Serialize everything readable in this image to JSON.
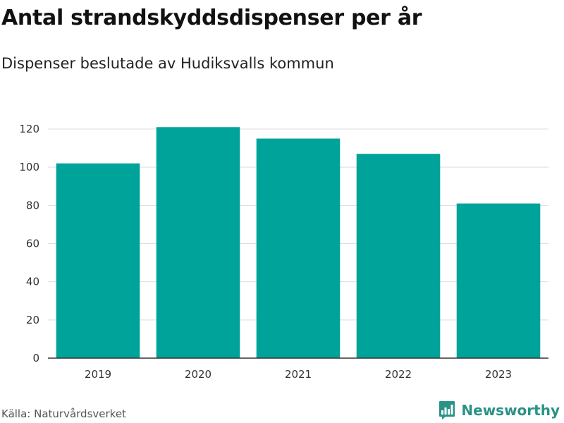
{
  "header": {
    "title": "Antal strandskyddsdispenser per år",
    "subtitle": "Dispenser beslutade av Hudiksvalls kommun"
  },
  "footer": {
    "source": "Källa: Naturvårdsverket",
    "brand": "Newsworthy",
    "brand_icon": "bar-chart-speech-bubble-icon"
  },
  "colors": {
    "bar": "#00a39a",
    "brand": "#2a9287",
    "grid": "#dddddd",
    "axis": "#333333"
  },
  "chart_data": {
    "type": "bar",
    "title": "Antal strandskyddsdispenser per år",
    "subtitle": "Dispenser beslutade av Hudiksvalls kommun",
    "categories": [
      "2019",
      "2020",
      "2021",
      "2022",
      "2023"
    ],
    "values": [
      102,
      121,
      115,
      107,
      81
    ],
    "ylim": [
      0,
      120
    ],
    "yticks": [
      "0",
      "20",
      "40",
      "60",
      "80",
      "100",
      "120"
    ],
    "grid": true,
    "legend": "none"
  }
}
